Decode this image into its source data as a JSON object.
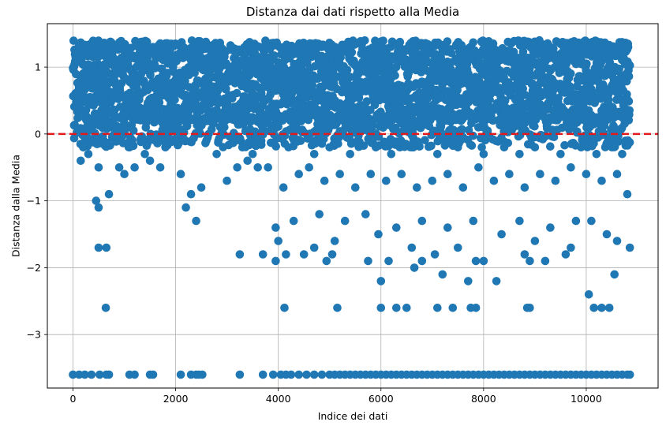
{
  "chart_data": {
    "type": "scatter",
    "title": "Distanza dai dati rispetto alla Media",
    "xlabel": "Indice dei dati",
    "ylabel": "Distanza dalla Media",
    "xlim": [
      -500,
      11400
    ],
    "ylim": [
      -3.8,
      1.65
    ],
    "xticks": [
      0,
      2000,
      4000,
      6000,
      8000,
      10000
    ],
    "xtick_labels": [
      "0",
      "2000",
      "4000",
      "6000",
      "8000",
      "10000"
    ],
    "yticks": [
      1,
      0,
      -1,
      -2,
      -3
    ],
    "ytick_labels": [
      "1",
      "0",
      "−1",
      "−2",
      "−3"
    ],
    "grid": true,
    "reference_line": {
      "y": 0,
      "style": "dashed",
      "color": "#e31a1c"
    },
    "point_color": "#1f77b4",
    "x_range": [
      0,
      10850
    ],
    "dense_band": [
      0.2,
      1.4
    ],
    "point_groups": [
      {
        "label": "bottom-cluster",
        "y": -3.6,
        "x": [
          0,
          120,
          230,
          360,
          520,
          650,
          700,
          1100,
          1200,
          1500,
          1560,
          2100,
          2300,
          2400,
          2450,
          2520,
          3250,
          3700,
          3900,
          4050,
          4150,
          4250,
          4400,
          4550,
          4700,
          4850,
          5000,
          5100,
          5200,
          5300,
          5400,
          5500,
          5600,
          5700,
          5800,
          5900,
          6000,
          6100,
          6200,
          6300,
          6400,
          6500,
          6600,
          6700,
          6800,
          6900,
          7000,
          7100,
          7200,
          7300,
          7400,
          7500,
          7600,
          7700,
          7800,
          7900,
          8000,
          8100,
          8200,
          8300,
          8400,
          8500,
          8600,
          8700,
          8800,
          8900,
          9000,
          9100,
          9200,
          9300,
          9400,
          9500,
          9600,
          9700,
          9800,
          9900,
          10000,
          10100,
          10200,
          10300,
          10400,
          10500,
          10600,
          10700,
          10800,
          10850
        ]
      },
      {
        "label": "outliers",
        "points": [
          [
            640,
            -2.6
          ],
          [
            4120,
            -2.6
          ],
          [
            5150,
            -2.6
          ],
          [
            6000,
            -2.6
          ],
          [
            6300,
            -2.6
          ],
          [
            6500,
            -2.6
          ],
          [
            7100,
            -2.6
          ],
          [
            7400,
            -2.6
          ],
          [
            7750,
            -2.6
          ],
          [
            7850,
            -2.6
          ],
          [
            8850,
            -2.6
          ],
          [
            8900,
            -2.6
          ],
          [
            10050,
            -2.4
          ],
          [
            10150,
            -2.6
          ],
          [
            10300,
            -2.6
          ],
          [
            10450,
            -2.6
          ],
          [
            10550,
            -2.1
          ],
          [
            6000,
            -2.2
          ],
          [
            7200,
            -2.1
          ],
          [
            7700,
            -2.2
          ],
          [
            8250,
            -2.2
          ],
          [
            6650,
            -2.0
          ],
          [
            8900,
            -1.9
          ],
          [
            5750,
            -1.9
          ],
          [
            6150,
            -1.9
          ],
          [
            6800,
            -1.9
          ],
          [
            7850,
            -1.9
          ],
          [
            9200,
            -1.9
          ],
          [
            3950,
            -1.9
          ],
          [
            4940,
            -1.9
          ],
          [
            5050,
            -1.8
          ],
          [
            500,
            -1.7
          ],
          [
            650,
            -1.7
          ],
          [
            3250,
            -1.8
          ],
          [
            3700,
            -1.8
          ],
          [
            4150,
            -1.8
          ],
          [
            4000,
            -1.6
          ],
          [
            3950,
            -1.4
          ],
          [
            4500,
            -1.8
          ],
          [
            4700,
            -1.7
          ],
          [
            5100,
            -1.6
          ],
          [
            5950,
            -1.5
          ],
          [
            6600,
            -1.7
          ],
          [
            7050,
            -1.8
          ],
          [
            7500,
            -1.7
          ],
          [
            8000,
            -1.9
          ],
          [
            8800,
            -1.8
          ],
          [
            9000,
            -1.6
          ],
          [
            9600,
            -1.8
          ],
          [
            9700,
            -1.7
          ],
          [
            10400,
            -1.5
          ],
          [
            10600,
            -1.6
          ],
          [
            10850,
            -1.7
          ],
          [
            4300,
            -1.3
          ],
          [
            4800,
            -1.2
          ],
          [
            5300,
            -1.3
          ],
          [
            5700,
            -1.2
          ],
          [
            6300,
            -1.4
          ],
          [
            6800,
            -1.3
          ],
          [
            7300,
            -1.4
          ],
          [
            7800,
            -1.3
          ],
          [
            8350,
            -1.5
          ],
          [
            8700,
            -1.3
          ],
          [
            9300,
            -1.4
          ],
          [
            9800,
            -1.3
          ],
          [
            10100,
            -1.3
          ],
          [
            450,
            -1.0
          ],
          [
            500,
            -1.1
          ],
          [
            2200,
            -1.1
          ],
          [
            2400,
            -1.3
          ],
          [
            150,
            -0.4
          ],
          [
            300,
            -0.3
          ],
          [
            500,
            -0.5
          ],
          [
            700,
            -0.9
          ],
          [
            900,
            -0.5
          ],
          [
            1000,
            -0.6
          ],
          [
            1200,
            -0.5
          ],
          [
            1500,
            -0.4
          ],
          [
            1700,
            -0.5
          ],
          [
            2100,
            -0.6
          ],
          [
            2300,
            -0.9
          ],
          [
            2500,
            -0.8
          ],
          [
            3000,
            -0.7
          ],
          [
            3200,
            -0.5
          ],
          [
            3400,
            -0.4
          ],
          [
            3600,
            -0.5
          ],
          [
            3800,
            -0.5
          ],
          [
            4100,
            -0.8
          ],
          [
            4400,
            -0.6
          ],
          [
            4600,
            -0.5
          ],
          [
            4900,
            -0.7
          ],
          [
            5200,
            -0.6
          ],
          [
            5500,
            -0.8
          ],
          [
            5800,
            -0.6
          ],
          [
            6100,
            -0.7
          ],
          [
            6400,
            -0.6
          ],
          [
            6700,
            -0.8
          ],
          [
            7000,
            -0.7
          ],
          [
            7300,
            -0.6
          ],
          [
            7600,
            -0.8
          ],
          [
            7900,
            -0.5
          ],
          [
            8200,
            -0.7
          ],
          [
            8500,
            -0.6
          ],
          [
            8800,
            -0.8
          ],
          [
            9100,
            -0.6
          ],
          [
            9400,
            -0.7
          ],
          [
            9700,
            -0.5
          ],
          [
            10000,
            -0.6
          ],
          [
            10300,
            -0.7
          ],
          [
            10600,
            -0.6
          ],
          [
            10800,
            -0.9
          ],
          [
            200,
            -0.2
          ],
          [
            600,
            -0.1
          ],
          [
            1100,
            -0.2
          ],
          [
            1400,
            -0.3
          ],
          [
            1800,
            -0.2
          ],
          [
            2600,
            -0.1
          ],
          [
            2800,
            -0.3
          ],
          [
            3300,
            -0.2
          ],
          [
            3500,
            -0.3
          ],
          [
            4200,
            -0.2
          ],
          [
            4700,
            -0.3
          ],
          [
            5000,
            -0.2
          ],
          [
            5400,
            -0.3
          ],
          [
            5900,
            -0.2
          ],
          [
            6200,
            -0.3
          ],
          [
            6600,
            -0.2
          ],
          [
            7100,
            -0.3
          ],
          [
            7500,
            -0.2
          ],
          [
            8000,
            -0.3
          ],
          [
            8400,
            -0.2
          ],
          [
            8700,
            -0.3
          ],
          [
            9000,
            -0.2
          ],
          [
            9500,
            -0.3
          ],
          [
            9900,
            -0.2
          ],
          [
            10200,
            -0.3
          ],
          [
            10500,
            -0.2
          ],
          [
            10700,
            -0.3
          ]
        ]
      }
    ]
  }
}
